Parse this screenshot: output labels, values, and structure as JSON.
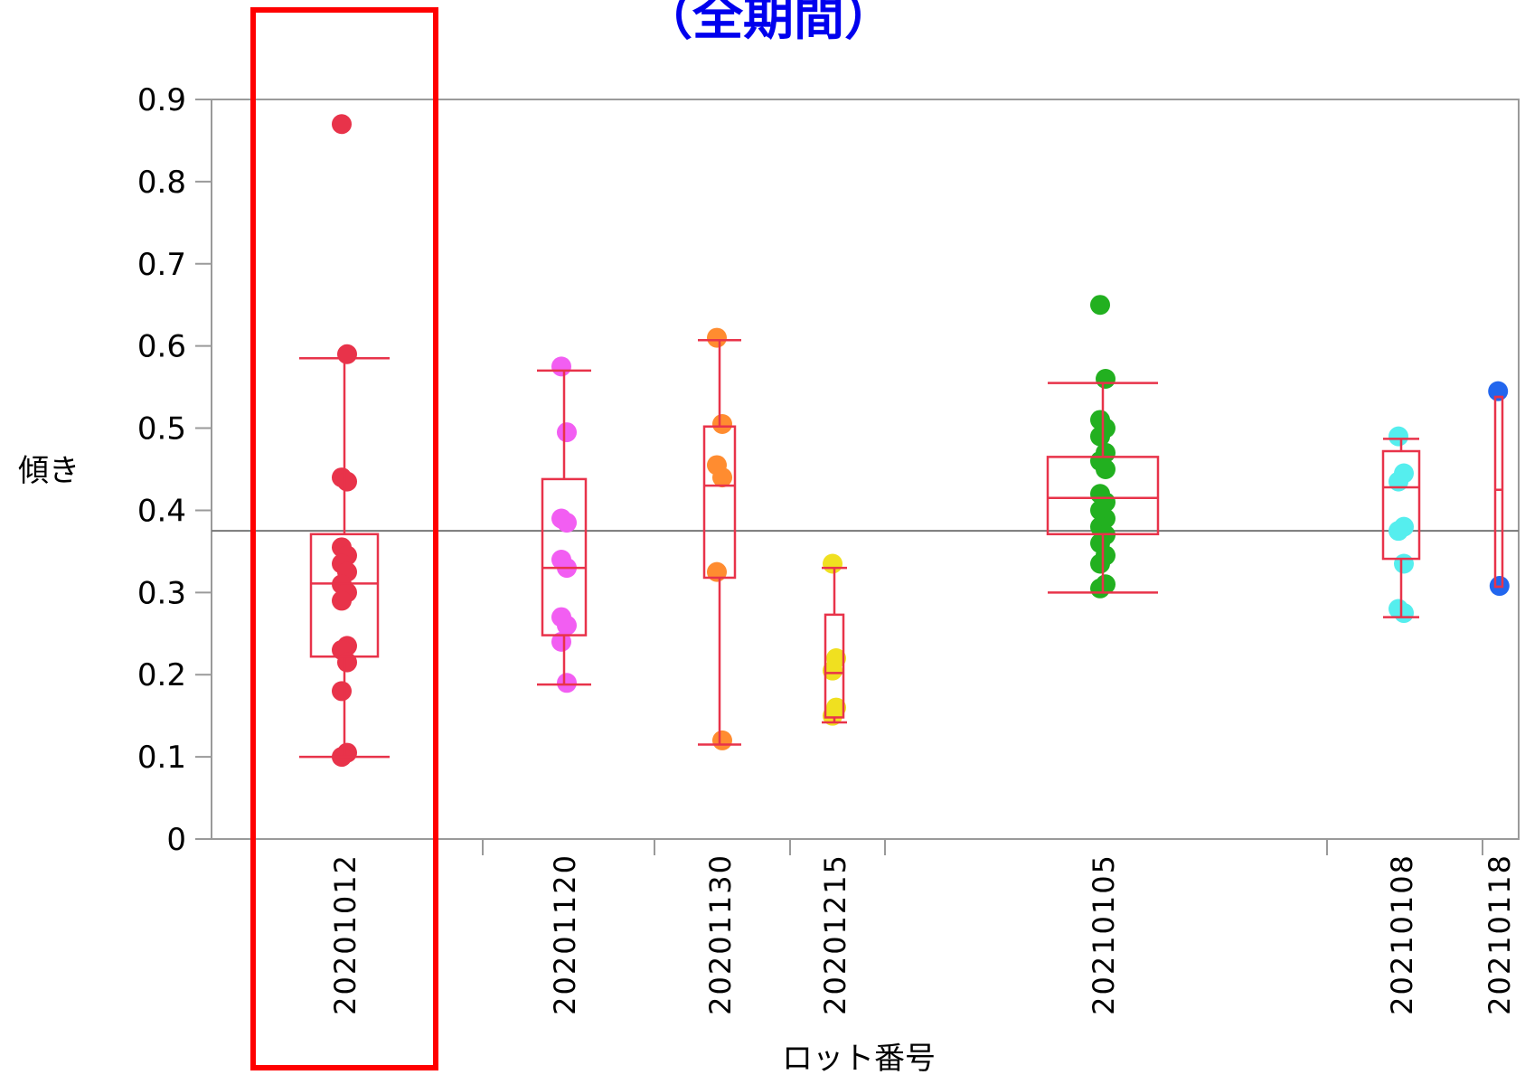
{
  "chart_data": {
    "type": "box",
    "title": "（全期間）",
    "xlabel": "ロット番号",
    "ylabel": "傾き",
    "ylim": [
      0,
      0.9
    ],
    "yticks": [
      "0",
      "0.1",
      "0.2",
      "0.3",
      "0.4",
      "0.5",
      "0.6",
      "0.7",
      "0.8",
      "0.9"
    ],
    "reference_line": 0.375,
    "highlighted_category": "20201012",
    "highlight_color": "#ff0000",
    "box_color": "#e8334a",
    "categories": [
      {
        "label": "20201012",
        "color": "#e8334a",
        "whisker_low": 0.1,
        "q1": 0.222,
        "median": 0.311,
        "q3": 0.371,
        "whisker_high": 0.585,
        "points": [
          0.87,
          0.59,
          0.44,
          0.435,
          0.355,
          0.345,
          0.335,
          0.325,
          0.31,
          0.3,
          0.29,
          0.235,
          0.23,
          0.215,
          0.18,
          0.105,
          0.1
        ]
      },
      {
        "label": "20201120",
        "color": "#f25ef2",
        "whisker_low": 0.188,
        "q1": 0.248,
        "median": 0.33,
        "q3": 0.438,
        "whisker_high": 0.57,
        "points": [
          0.575,
          0.495,
          0.39,
          0.385,
          0.34,
          0.33,
          0.27,
          0.26,
          0.24,
          0.19
        ]
      },
      {
        "label": "20201130",
        "color": "#ff8c30",
        "whisker_low": 0.115,
        "q1": 0.318,
        "median": 0.43,
        "q3": 0.502,
        "whisker_high": 0.607,
        "points": [
          0.61,
          0.505,
          0.455,
          0.44,
          0.325,
          0.12
        ]
      },
      {
        "label": "20201215",
        "color": "#f0e020",
        "whisker_low": 0.142,
        "q1": 0.148,
        "median": 0.202,
        "q3": 0.273,
        "whisker_high": 0.33,
        "points": [
          0.335,
          0.22,
          0.205,
          0.16,
          0.15
        ]
      },
      {
        "label": "20210105",
        "color": "#22b020",
        "whisker_low": 0.3,
        "q1": 0.371,
        "median": 0.415,
        "q3": 0.465,
        "whisker_high": 0.555,
        "points": [
          0.65,
          0.56,
          0.51,
          0.5,
          0.49,
          0.47,
          0.46,
          0.45,
          0.42,
          0.41,
          0.4,
          0.39,
          0.38,
          0.37,
          0.36,
          0.345,
          0.335,
          0.31,
          0.305
        ]
      },
      {
        "label": "20210108",
        "color": "#55eeee",
        "whisker_low": 0.27,
        "q1": 0.341,
        "median": 0.428,
        "q3": 0.472,
        "whisker_high": 0.487,
        "points": [
          0.49,
          0.445,
          0.435,
          0.38,
          0.375,
          0.335,
          0.28,
          0.275
        ]
      },
      {
        "label": "20210118",
        "color": "#2266ee",
        "whisker_low": 0.307,
        "q1": 0.307,
        "median": 0.425,
        "q3": 0.538,
        "whisker_high": 0.538,
        "points": [
          0.545,
          0.308
        ]
      }
    ]
  }
}
